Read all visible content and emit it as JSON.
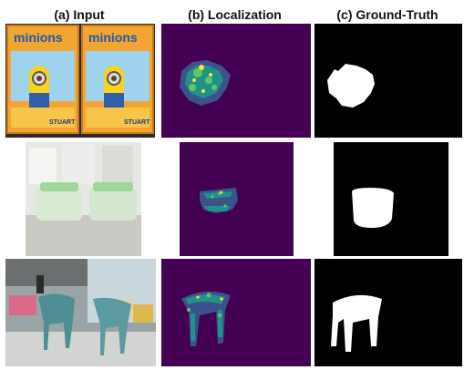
{
  "headers": {
    "input": "(a) Input",
    "localization": "(b) Localization",
    "ground_truth": "(c) Ground-Truth"
  },
  "rows": [
    {
      "subject": "minions-toy-package",
      "input_text": {
        "brand": "minions",
        "character": "STUART"
      }
    },
    {
      "subject": "white-plastic-container"
    },
    {
      "subject": "teal-chair"
    }
  ],
  "colors": {
    "heatmap_background": "#440154",
    "heatmap_low": "#3b528b",
    "heatmap_mid": "#21918c",
    "heatmap_high": "#5ec962",
    "heatmap_peak": "#fde725",
    "mask_background": "#000000",
    "mask_foreground": "#ffffff"
  }
}
